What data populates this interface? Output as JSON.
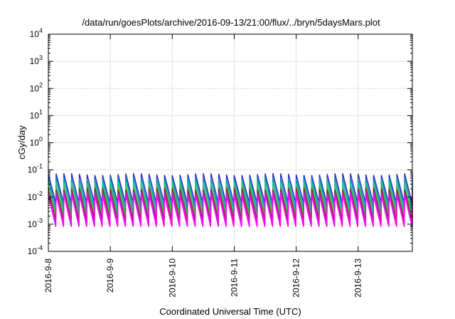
{
  "chart_data": {
    "type": "line",
    "title": "/data/run/goesPlots/archive/2016-09-13/21:00/flux/../bryn/5daysMars.plot",
    "xlabel": "Coordinated Universal Time (UTC)",
    "ylabel": "cGy/day",
    "x_range": [
      "2016-09-08T00:00",
      "2016-09-13T21:00"
    ],
    "x_ticks": [
      "2016-9-8",
      "2016-9-9",
      "2016-9-10",
      "2016-9-11",
      "2016-9-12",
      "2016-9-13"
    ],
    "x_tick_dates": [
      "2016-09-08",
      "2016-09-09",
      "2016-09-10",
      "2016-09-11",
      "2016-09-12",
      "2016-09-13"
    ],
    "y_scale": "log",
    "y_range": [
      0.0001,
      10000
    ],
    "y_ticks": [
      {
        "value": 0.0001,
        "base": "10",
        "exp": "-4"
      },
      {
        "value": 0.001,
        "base": "10",
        "exp": "-3"
      },
      {
        "value": 0.01,
        "base": "10",
        "exp": "-2"
      },
      {
        "value": 0.1,
        "base": "10",
        "exp": "-1"
      },
      {
        "value": 1,
        "base": "10",
        "exp": "0"
      },
      {
        "value": 10,
        "base": "10",
        "exp": "1"
      },
      {
        "value": 100,
        "base": "10",
        "exp": "2"
      },
      {
        "value": 1000,
        "base": "10",
        "exp": "3"
      },
      {
        "value": 10000,
        "base": "10",
        "exp": "4"
      }
    ],
    "grid": true,
    "legend": "none",
    "sawtooth_period_hours": 3,
    "series": [
      {
        "color": "#2a2ad0",
        "peak": 0.07,
        "trough": 0.006
      },
      {
        "color": "#1a8f9a",
        "peak": 0.05,
        "trough": 0.004
      },
      {
        "color": "#20c0a0",
        "peak": 0.035,
        "trough": 0.003
      },
      {
        "color": "#3cb44b",
        "peak": 0.025,
        "trough": 0.0022
      },
      {
        "color": "#8f2a2a",
        "peak": 0.02,
        "trough": 0.0015
      },
      {
        "color": "#c020c0",
        "peak": 0.015,
        "trough": 0.0011
      },
      {
        "color": "#ff00ff",
        "peak": 0.012,
        "trough": 0.0008
      }
    ]
  }
}
